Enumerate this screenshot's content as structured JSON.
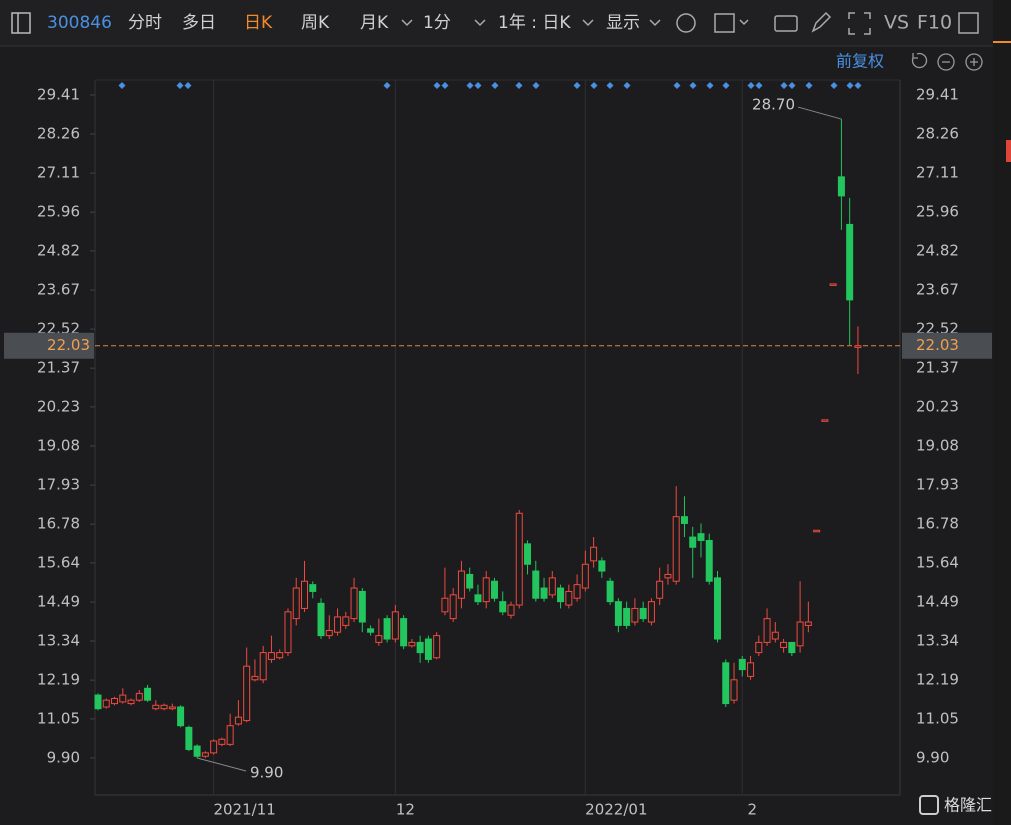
{
  "toolbar": {
    "code": "300846",
    "tabs": [
      "分时",
      "多日",
      "日K",
      "周K",
      "月K"
    ],
    "interval": "1分",
    "range": "1年 : 日K",
    "display": "显示",
    "vs": "VS",
    "f10": "F10"
  },
  "adjust": "前复权",
  "watermark": "格隆汇",
  "chart_data": {
    "type": "candlestick",
    "categories": [
      null,
      null,
      null,
      null,
      null,
      null,
      null,
      null,
      null,
      null,
      null,
      null,
      null,
      null,
      "2021/11",
      null,
      null,
      null,
      null,
      null,
      null,
      null,
      null,
      null,
      null,
      null,
      null,
      null,
      null,
      null,
      null,
      null,
      null,
      null,
      null,
      null,
      "12",
      null,
      null,
      null,
      null,
      null,
      null,
      null,
      null,
      null,
      null,
      null,
      null,
      null,
      null,
      null,
      null,
      null,
      null,
      null,
      null,
      null,
      null,
      "2022/01",
      null,
      null,
      null,
      null,
      null,
      null,
      null,
      null,
      null,
      null,
      null,
      null,
      null,
      null,
      null,
      null,
      null,
      null,
      "2",
      null,
      null,
      null,
      null,
      null,
      null,
      null,
      null,
      null,
      null,
      null,
      null,
      null,
      null
    ],
    "open": [
      11.75,
      11.4,
      11.5,
      11.55,
      11.5,
      11.6,
      11.95,
      11.35,
      11.35,
      11.35,
      11.4,
      10.8,
      10.25,
      9.95,
      10.05,
      10.3,
      10.3,
      10.9,
      11.0,
      12.2,
      12.2,
      12.8,
      12.85,
      13.0,
      14.0,
      14.3,
      15.0,
      14.45,
      13.5,
      13.6,
      13.8,
      14.0,
      14.8,
      13.7,
      13.3,
      14.0,
      13.4,
      14.0,
      13.2,
      13.3,
      13.4,
      12.85,
      14.2,
      14.0,
      14.6,
      15.3,
      14.7,
      14.5,
      15.1,
      14.5,
      14.1,
      14.4,
      16.2,
      15.4,
      14.9,
      14.7,
      14.9,
      14.4,
      14.6,
      14.9,
      15.7,
      15.7,
      15.1,
      14.5,
      14.3,
      13.9,
      14.3,
      13.9,
      14.6,
      15.2,
      15.1,
      17.0,
      16.4,
      16.5,
      16.3,
      15.2,
      12.7,
      11.6,
      12.8,
      12.3,
      13.0,
      13.3,
      13.4,
      13.15,
      13.3,
      13.2,
      13.8,
      16.6,
      19.85,
      23.85,
      27.0,
      25.6,
      21.98
    ],
    "high": [
      11.8,
      11.65,
      11.7,
      11.95,
      11.65,
      11.9,
      12.05,
      11.6,
      11.5,
      11.5,
      11.45,
      10.85,
      10.3,
      10.1,
      10.45,
      10.5,
      11.2,
      11.6,
      13.15,
      12.8,
      13.2,
      13.5,
      13.1,
      14.3,
      15.2,
      15.7,
      15.1,
      14.6,
      14.1,
      14.3,
      14.2,
      15.2,
      14.9,
      13.8,
      14.0,
      14.1,
      14.4,
      14.1,
      13.4,
      13.5,
      13.5,
      13.6,
      15.5,
      14.9,
      15.7,
      15.5,
      15.0,
      15.4,
      15.2,
      14.8,
      14.5,
      17.2,
      16.3,
      15.7,
      15.2,
      15.4,
      15.0,
      15.0,
      15.3,
      16.0,
      16.4,
      15.8,
      15.2,
      14.6,
      14.5,
      14.6,
      14.5,
      14.6,
      15.5,
      15.6,
      17.9,
      17.6,
      16.7,
      16.8,
      16.5,
      15.4,
      12.8,
      12.7,
      12.9,
      12.9,
      13.5,
      14.3,
      13.9,
      13.4,
      13.3,
      15.1,
      14.5,
      16.6,
      19.85,
      23.85,
      28.7,
      26.38,
      22.6
    ],
    "low": [
      11.3,
      11.35,
      11.45,
      11.5,
      11.45,
      11.55,
      11.55,
      11.3,
      11.3,
      11.3,
      10.8,
      10.1,
      9.9,
      9.9,
      10.0,
      10.25,
      10.25,
      10.85,
      10.95,
      12.15,
      12.1,
      12.7,
      12.8,
      12.9,
      13.8,
      14.2,
      14.6,
      13.4,
      13.4,
      13.5,
      13.7,
      13.9,
      13.6,
      13.5,
      13.2,
      13.3,
      13.3,
      13.1,
      13.15,
      12.7,
      12.7,
      12.8,
      14.1,
      13.9,
      14.3,
      14.8,
      14.4,
      14.3,
      14.5,
      14.1,
      14.0,
      14.3,
      15.3,
      14.5,
      14.5,
      14.6,
      14.3,
      14.3,
      14.5,
      14.8,
      15.5,
      15.2,
      14.4,
      13.6,
      13.7,
      13.8,
      13.9,
      13.8,
      14.4,
      15.0,
      15.0,
      16.4,
      15.2,
      15.8,
      15.0,
      13.3,
      11.4,
      11.5,
      12.3,
      12.2,
      12.9,
      13.2,
      13.3,
      13.0,
      12.9,
      13.0,
      13.6,
      16.6,
      19.85,
      23.85,
      25.44,
      22.05,
      21.2
    ],
    "close": [
      11.35,
      11.6,
      11.65,
      11.75,
      11.6,
      11.8,
      11.6,
      11.45,
      11.45,
      11.4,
      10.85,
      10.15,
      9.95,
      10.05,
      10.4,
      10.45,
      10.85,
      11.1,
      12.6,
      12.3,
      13.0,
      13.0,
      13.0,
      14.2,
      14.9,
      15.1,
      14.8,
      13.5,
      13.65,
      14.05,
      14.05,
      14.9,
      13.9,
      13.6,
      13.5,
      13.4,
      14.2,
      13.2,
      13.3,
      13.0,
      12.8,
      13.5,
      14.6,
      14.7,
      15.4,
      14.9,
      14.5,
      15.2,
      14.6,
      14.2,
      14.4,
      17.1,
      15.6,
      14.6,
      14.6,
      15.2,
      14.5,
      14.8,
      15.0,
      15.6,
      16.1,
      15.4,
      14.5,
      13.8,
      13.8,
      14.3,
      14.0,
      14.5,
      15.1,
      15.3,
      17.0,
      16.8,
      16.1,
      16.3,
      15.1,
      13.4,
      11.5,
      12.2,
      12.5,
      12.7,
      13.3,
      14.0,
      13.6,
      13.3,
      13.0,
      13.9,
      13.9,
      16.6,
      19.85,
      23.85,
      26.44,
      23.38,
      22.03
    ],
    "up_color": "#f04a3e",
    "down_color": "#22c55e",
    "last_price": 22.03,
    "last_price_color": "#e8843c",
    "annotations": [
      {
        "value": 28.7,
        "label": "28.70"
      },
      {
        "value": 9.9,
        "label": "9.90"
      }
    ],
    "ylim": [
      8.81,
      29.85
    ],
    "yticks": [
      29.41,
      28.26,
      27.11,
      25.96,
      24.82,
      23.67,
      22.52,
      21.37,
      20.23,
      19.08,
      17.93,
      16.78,
      15.64,
      14.49,
      13.34,
      12.19,
      11.05,
      {
        "value": 9.9,
        "label": "9.90"
      }
    ]
  }
}
